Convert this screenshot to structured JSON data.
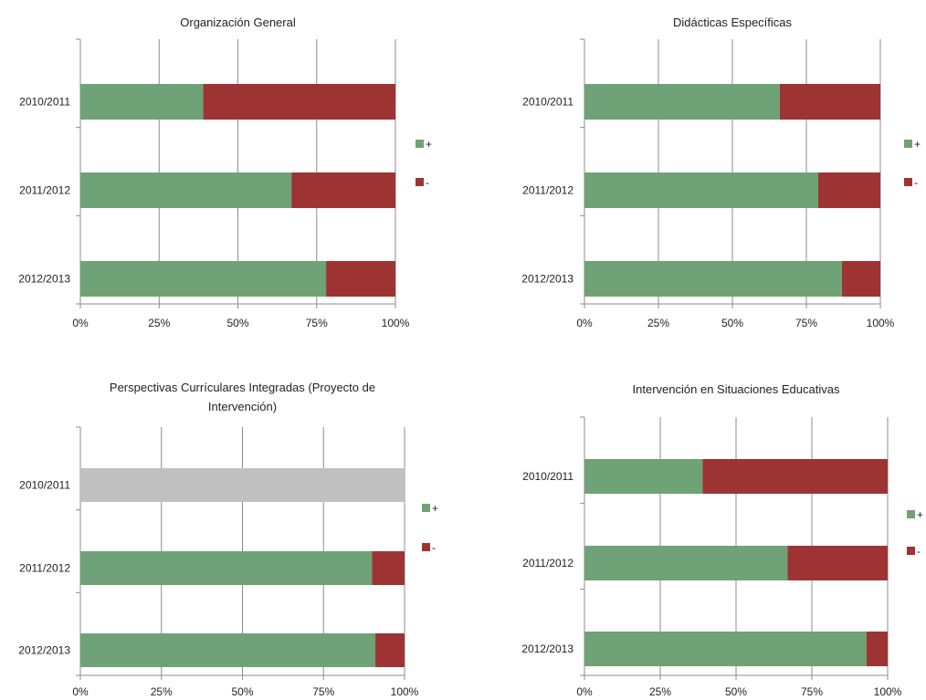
{
  "colors": {
    "positive": "#6fa276",
    "negative": "#9e3333",
    "no_data": "#c0c0c0",
    "grid": "#8c8c8c"
  },
  "legend": {
    "positive_label": "+",
    "negative_label": "-"
  },
  "chart_data": [
    {
      "type": "bar",
      "orientation": "horizontal",
      "stacked": "percent",
      "title": "Organización General",
      "categories": [
        "2010/2011",
        "2011/2012",
        "2012/2013"
      ],
      "series": [
        {
          "name": "+",
          "values": [
            39,
            67,
            78
          ]
        },
        {
          "name": "-",
          "values": [
            61,
            33,
            22
          ]
        }
      ],
      "xlim": [
        0,
        100
      ],
      "xticks": [
        "0%",
        "25%",
        "50%",
        "75%",
        "100%"
      ],
      "grid": true,
      "legend_position": "right"
    },
    {
      "type": "bar",
      "orientation": "horizontal",
      "stacked": "percent",
      "title": "Didácticas  Específicas",
      "categories": [
        "2010/2011",
        "2011/2012",
        "2012/2013"
      ],
      "series": [
        {
          "name": "+",
          "values": [
            66,
            79,
            87
          ]
        },
        {
          "name": "-",
          "values": [
            34,
            21,
            13
          ]
        }
      ],
      "xlim": [
        0,
        100
      ],
      "xticks": [
        "0%",
        "25%",
        "50%",
        "75%",
        "100%"
      ],
      "grid": true,
      "legend_position": "right"
    },
    {
      "type": "bar",
      "orientation": "horizontal",
      "stacked": "percent",
      "title": "Perspectivas Currículares Integradas (Proyecto de Intervención)",
      "title_lines": [
        "Perspectivas Currículares Integradas (Proyecto de",
        "Intervención)"
      ],
      "categories": [
        "2010/2011",
        "2011/2012",
        "2012/2013"
      ],
      "series": [
        {
          "name": "+",
          "values": [
            null,
            90,
            91
          ]
        },
        {
          "name": "-",
          "values": [
            null,
            10,
            9
          ]
        }
      ],
      "no_data_rows": [
        0
      ],
      "xlim": [
        0,
        100
      ],
      "xticks": [
        "0%",
        "25%",
        "50%",
        "75%",
        "100%"
      ],
      "grid": true,
      "legend_position": "right"
    },
    {
      "type": "bar",
      "orientation": "horizontal",
      "stacked": "percent",
      "title": "Intervención en Situaciones  Educativas",
      "categories": [
        "2010/2011",
        "2011/2012",
        "2012/2013"
      ],
      "series": [
        {
          "name": "+",
          "values": [
            39,
            67,
            93
          ]
        },
        {
          "name": "-",
          "values": [
            61,
            33,
            7
          ]
        }
      ],
      "xlim": [
        0,
        100
      ],
      "xticks": [
        "0%",
        "25%",
        "50%",
        "75%",
        "100%"
      ],
      "grid": true,
      "legend_position": "right"
    }
  ]
}
